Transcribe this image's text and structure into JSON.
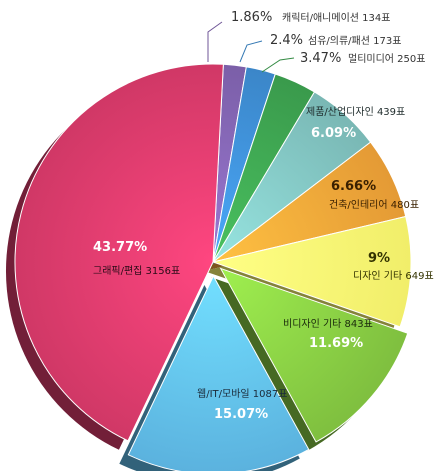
{
  "chart_data": {
    "type": "pie",
    "title": "",
    "slices": [
      {
        "key": "character",
        "label": "캐릭터/애니메이션 134표",
        "percent_label": "1.86%",
        "value": 1.86,
        "color": "#7b5fa8"
      },
      {
        "key": "textile",
        "label": "섬유/의류/패션 173표",
        "percent_label": "2.4%",
        "value": 2.4,
        "color": "#3b86c8"
      },
      {
        "key": "multimedia",
        "label": "멀티미디어 250표",
        "percent_label": "3.47%",
        "value": 3.47,
        "color": "#3a9a4c"
      },
      {
        "key": "product",
        "label": "제품/산업디자인 439표",
        "percent_label": "6.09%",
        "value": 6.09,
        "color": "#79b7b4"
      },
      {
        "key": "architecture",
        "label": "건축/인테리어 480표",
        "percent_label": "6.66%",
        "value": 6.66,
        "color": "#e49a35"
      },
      {
        "key": "design-other",
        "label": "디자인 기타 649표",
        "percent_label": "9%",
        "value": 9.0,
        "color": "#f1ee6a"
      },
      {
        "key": "non-design-other",
        "label": "비디자인 기타 843표",
        "percent_label": "11.69%",
        "value": 11.69,
        "color": "#7fbf3f"
      },
      {
        "key": "web-mobile",
        "label": "웹/IT/모바일 1087표",
        "percent_label": "15.07%",
        "value": 15.07,
        "color": "#5bb2de"
      },
      {
        "key": "graphic",
        "label": "그래픽/편집 3156표",
        "percent_label": "43.77%",
        "value": 43.77,
        "color": "#d03866"
      }
    ]
  }
}
